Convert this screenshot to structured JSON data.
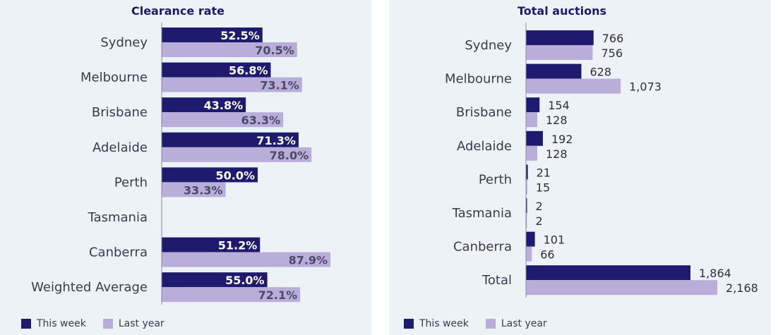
{
  "colors": {
    "this_week": "#1e1a6d",
    "last_year": "#b9aed9",
    "axis": "#8b8b9a"
  },
  "legend": {
    "this_week": "This week",
    "last_year": "Last year"
  },
  "chart_data": [
    {
      "type": "bar",
      "orientation": "horizontal",
      "title": "Clearance rate",
      "categories": [
        "Sydney",
        "Melbourne",
        "Brisbane",
        "Adelaide",
        "Perth",
        "Tasmania",
        "Canberra",
        "Weighted Average"
      ],
      "series": [
        {
          "name": "This week",
          "values": [
            52.5,
            56.8,
            43.8,
            71.3,
            50.0,
            null,
            51.2,
            55.0
          ],
          "labels": [
            "52.5%",
            "56.8%",
            "43.8%",
            "71.3%",
            "50.0%",
            "",
            "51.2%",
            "55.0%"
          ]
        },
        {
          "name": "Last year",
          "values": [
            70.5,
            73.1,
            63.3,
            78.0,
            33.3,
            null,
            87.9,
            72.1
          ],
          "labels": [
            "70.5%",
            "73.1%",
            "63.3%",
            "78.0%",
            "33.3%",
            "",
            "87.9%",
            "72.1%"
          ]
        }
      ],
      "xlim": [
        0,
        100
      ]
    },
    {
      "type": "bar",
      "orientation": "horizontal",
      "title": "Total auctions",
      "categories": [
        "Sydney",
        "Melbourne",
        "Brisbane",
        "Adelaide",
        "Perth",
        "Tasmania",
        "Canberra",
        "Total"
      ],
      "series": [
        {
          "name": "This week",
          "values": [
            766,
            628,
            154,
            192,
            21,
            2,
            101,
            1864
          ],
          "labels": [
            "766",
            "628",
            "154",
            "192",
            "21",
            "2",
            "101",
            "1,864"
          ]
        },
        {
          "name": "Last year",
          "values": [
            756,
            1073,
            128,
            128,
            15,
            2,
            66,
            2168
          ],
          "labels": [
            "756",
            "1,073",
            "128",
            "128",
            "15",
            "2",
            "66",
            "2,168"
          ]
        }
      ],
      "xlim": [
        0,
        2400
      ]
    }
  ]
}
